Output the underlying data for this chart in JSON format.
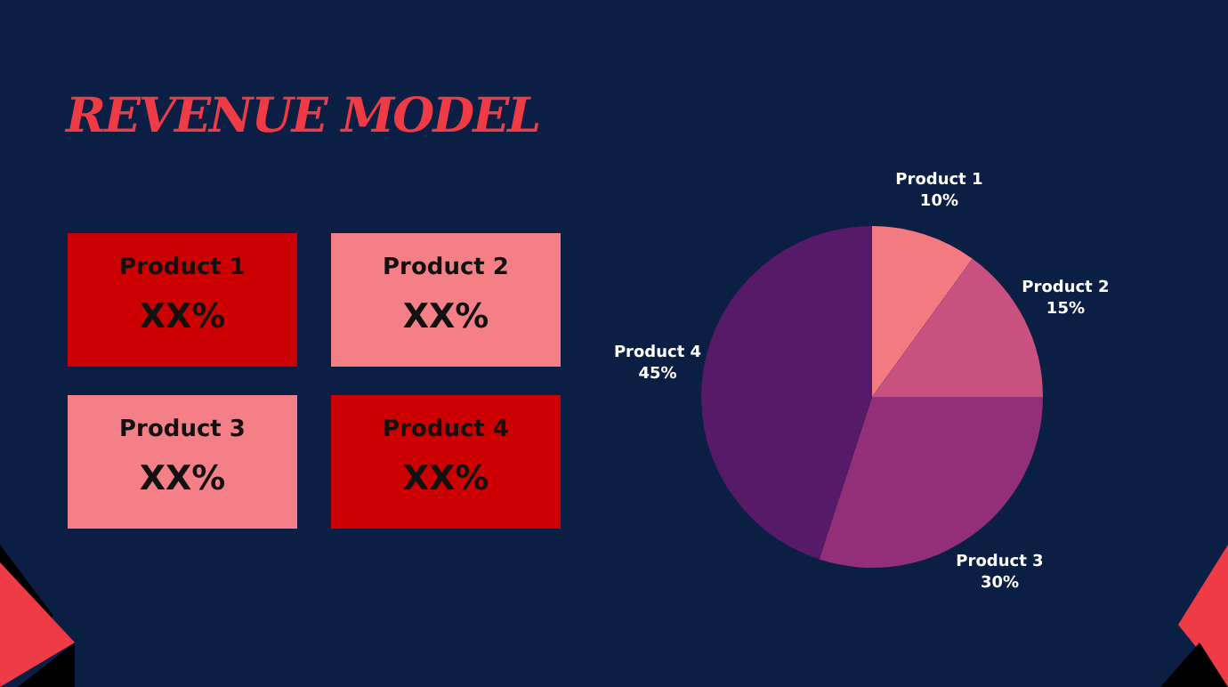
{
  "chart_data": [
    {
      "type": "other",
      "title": "REVENUE MODEL",
      "categories": [
        "Product 1",
        "Product 2",
        "Product 3",
        "Product 4"
      ],
      "value_labels": [
        "XX%",
        "XX%",
        "XX%",
        "XX%"
      ],
      "colors": [
        "#cc0000",
        "#f47f86",
        "#f47f86",
        "#cc0000"
      ]
    },
    {
      "type": "pie",
      "categories": [
        "Product 1",
        "Product 2",
        "Product 3",
        "Product 4"
      ],
      "values": [
        10,
        15,
        30,
        45
      ],
      "value_labels": [
        "10%",
        "15%",
        "30%",
        "45%"
      ],
      "colors": [
        "#f47a82",
        "#c9517f",
        "#922f78",
        "#571a69"
      ]
    }
  ]
}
